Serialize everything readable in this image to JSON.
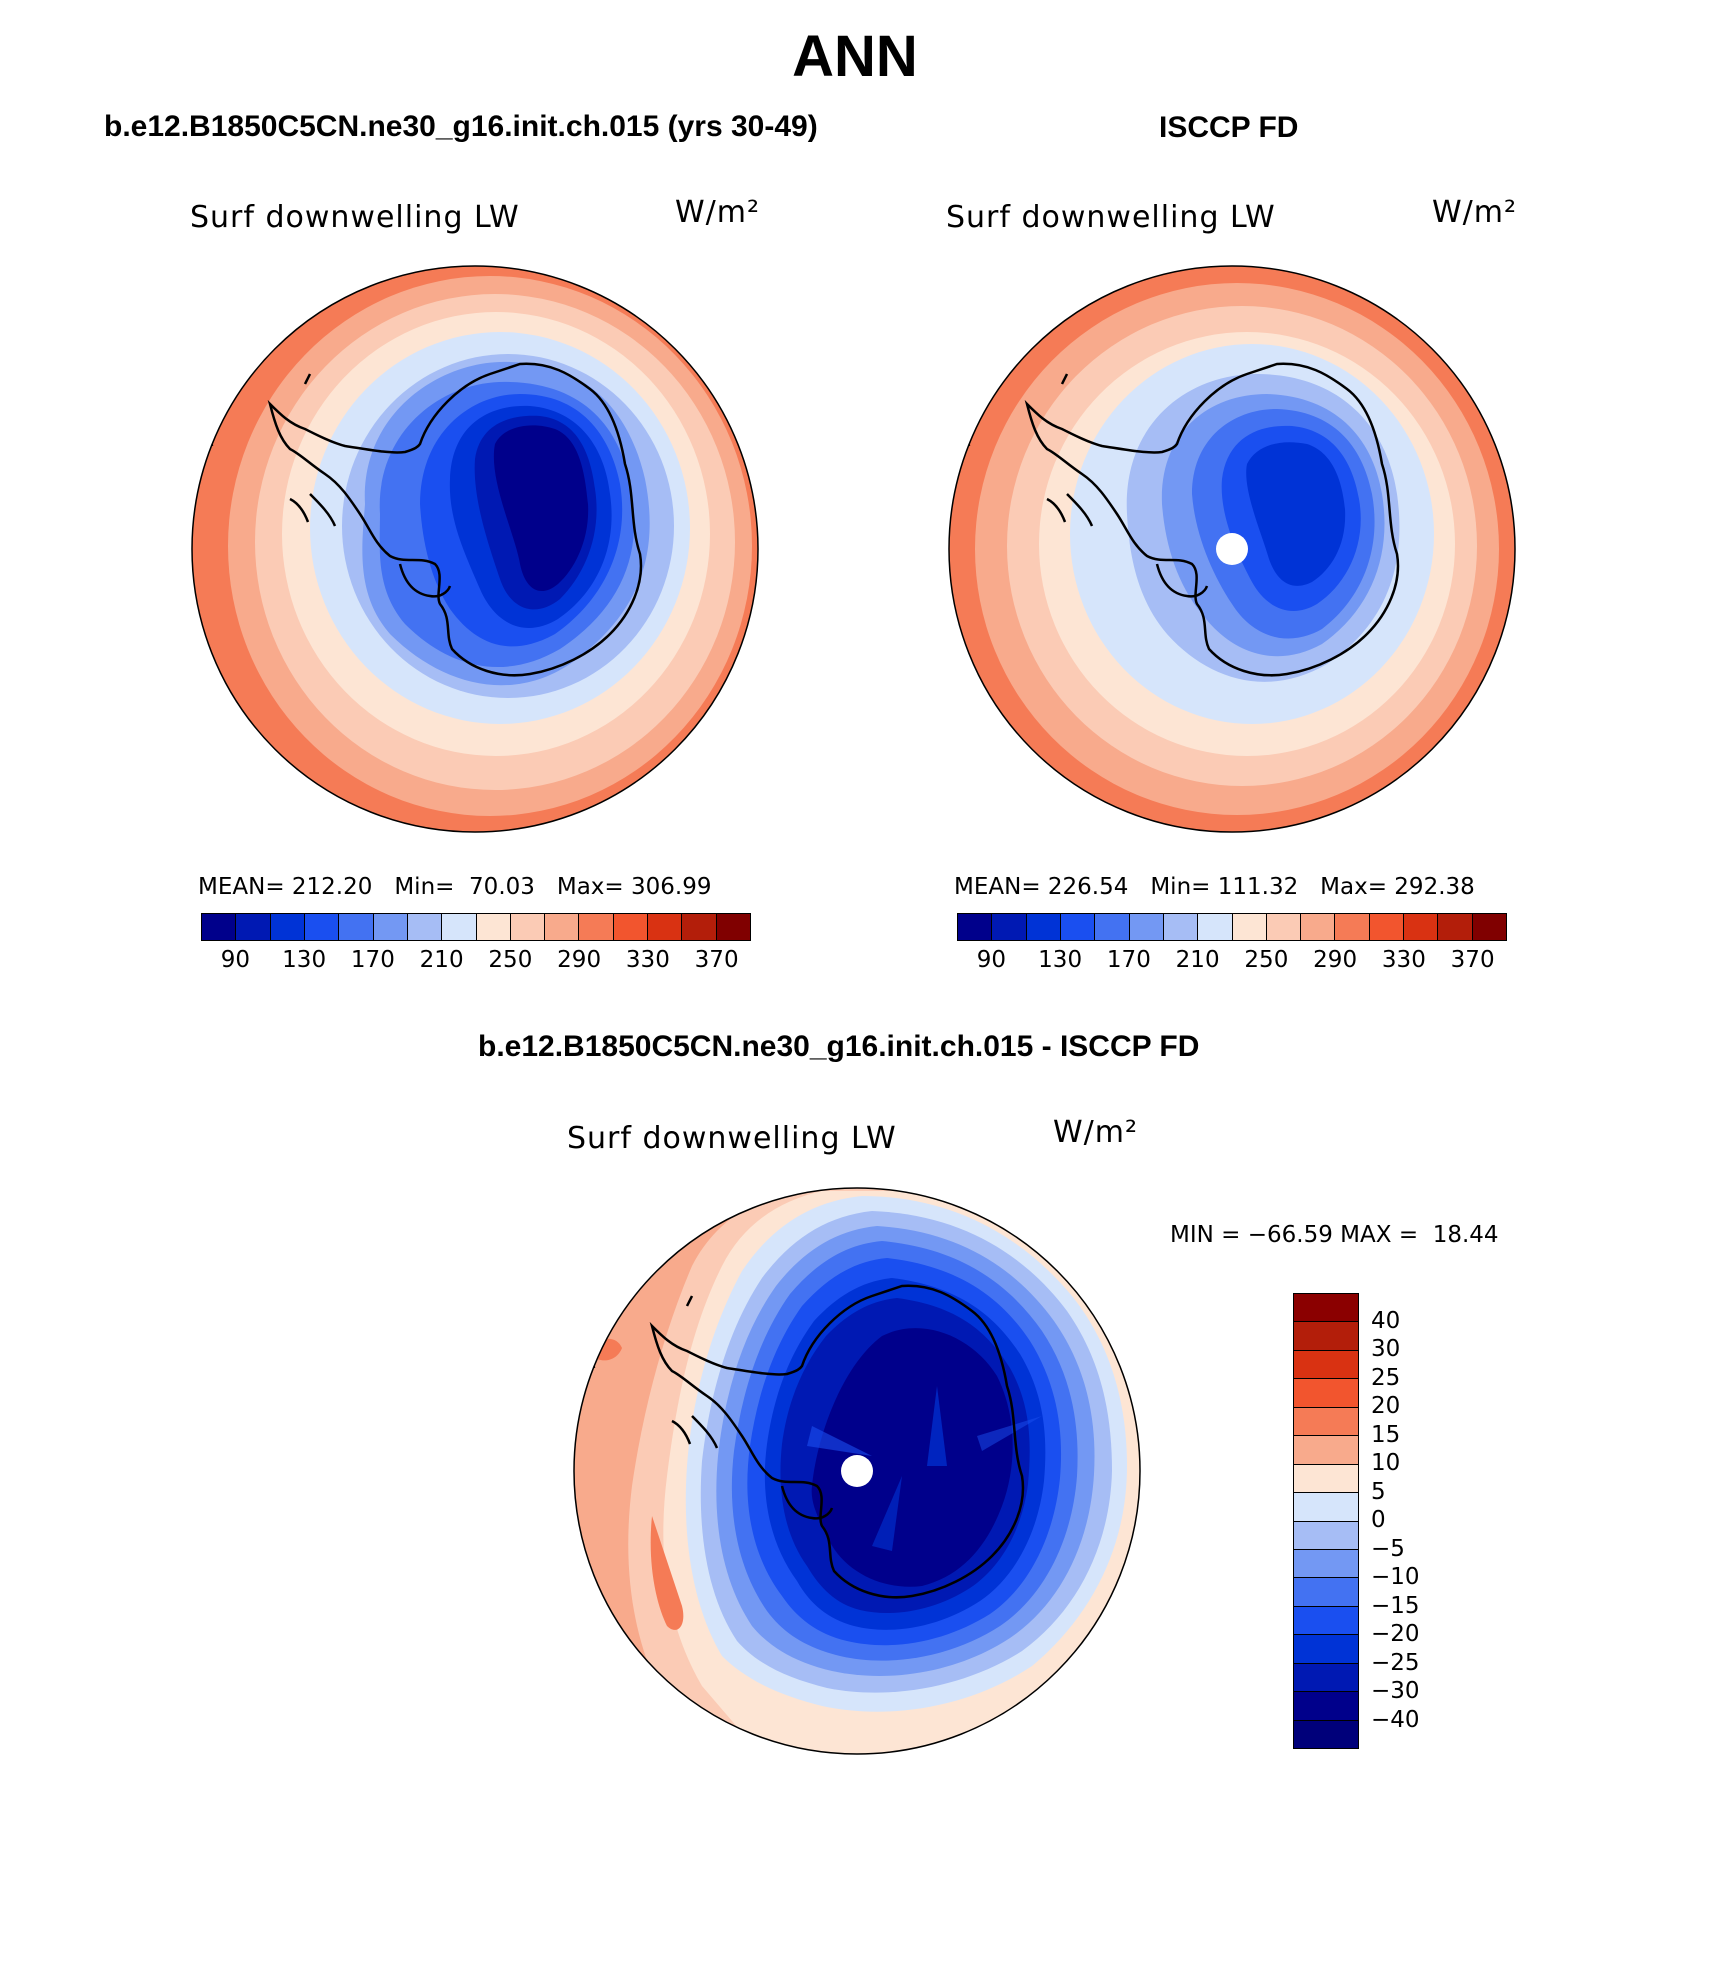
{
  "title": "ANN",
  "panels": [
    {
      "id": "model",
      "heading": "b.e12.B1850C5CN.ne30_g16.init.ch.015 (yrs 30-49)",
      "variable": "Surf downwelling LW",
      "units": "W/m²",
      "stats": {
        "mean_label": "MEAN=",
        "mean": "212.20",
        "min_label": "Min=",
        "min": "70.03",
        "max_label": "Max=",
        "max": "306.99"
      },
      "pole_hole": false
    },
    {
      "id": "obs",
      "heading": "ISCCP FD",
      "variable": "Surf downwelling LW",
      "units": "W/m²",
      "stats": {
        "mean_label": "MEAN=",
        "mean": "226.54",
        "min_label": "Min=",
        "min": "111.32",
        "max_label": "Max=",
        "max": "292.38"
      },
      "pole_hole": true
    },
    {
      "id": "diff",
      "heading": "b.e12.B1850C5CN.ne30_g16.init.ch.015 - ISCCP FD",
      "variable": "Surf downwelling LW",
      "units": "W/m²",
      "stats": {
        "min_label": "MIN =",
        "min": "−66.59",
        "max_label": "MAX =",
        "max": "18.44"
      },
      "pole_hole": true
    }
  ],
  "colorbars": {
    "absolute": {
      "orientation": "horizontal",
      "colors": [
        "#00008b",
        "#0019b3",
        "#0033d6",
        "#1a4ff0",
        "#4372f2",
        "#7398f3",
        "#a6bdf5",
        "#d6e5fb",
        "#fde5d4",
        "#fbcbb5",
        "#f8aa8c",
        "#f57b56",
        "#f2552e",
        "#d93212",
        "#b31e0a",
        "#800000"
      ],
      "tick_labels": [
        "90",
        "130",
        "170",
        "210",
        "250",
        "290",
        "330",
        "370"
      ]
    },
    "difference": {
      "orientation": "vertical",
      "colors_top_to_bottom": [
        "#8b0000",
        "#b31e0a",
        "#d93212",
        "#f2552e",
        "#f57b56",
        "#f8aa8c",
        "#fde5d4",
        "#d6e5fb",
        "#a6bdf5",
        "#7398f3",
        "#4372f2",
        "#1a4ff0",
        "#0033d6",
        "#0019b3",
        "#00008b",
        "#00007a"
      ],
      "tick_labels": [
        "40",
        "30",
        "25",
        "20",
        "15",
        "10",
        "5",
        "0",
        "−5",
        "−10",
        "−15",
        "−20",
        "−25",
        "−30",
        "−40"
      ]
    }
  }
}
